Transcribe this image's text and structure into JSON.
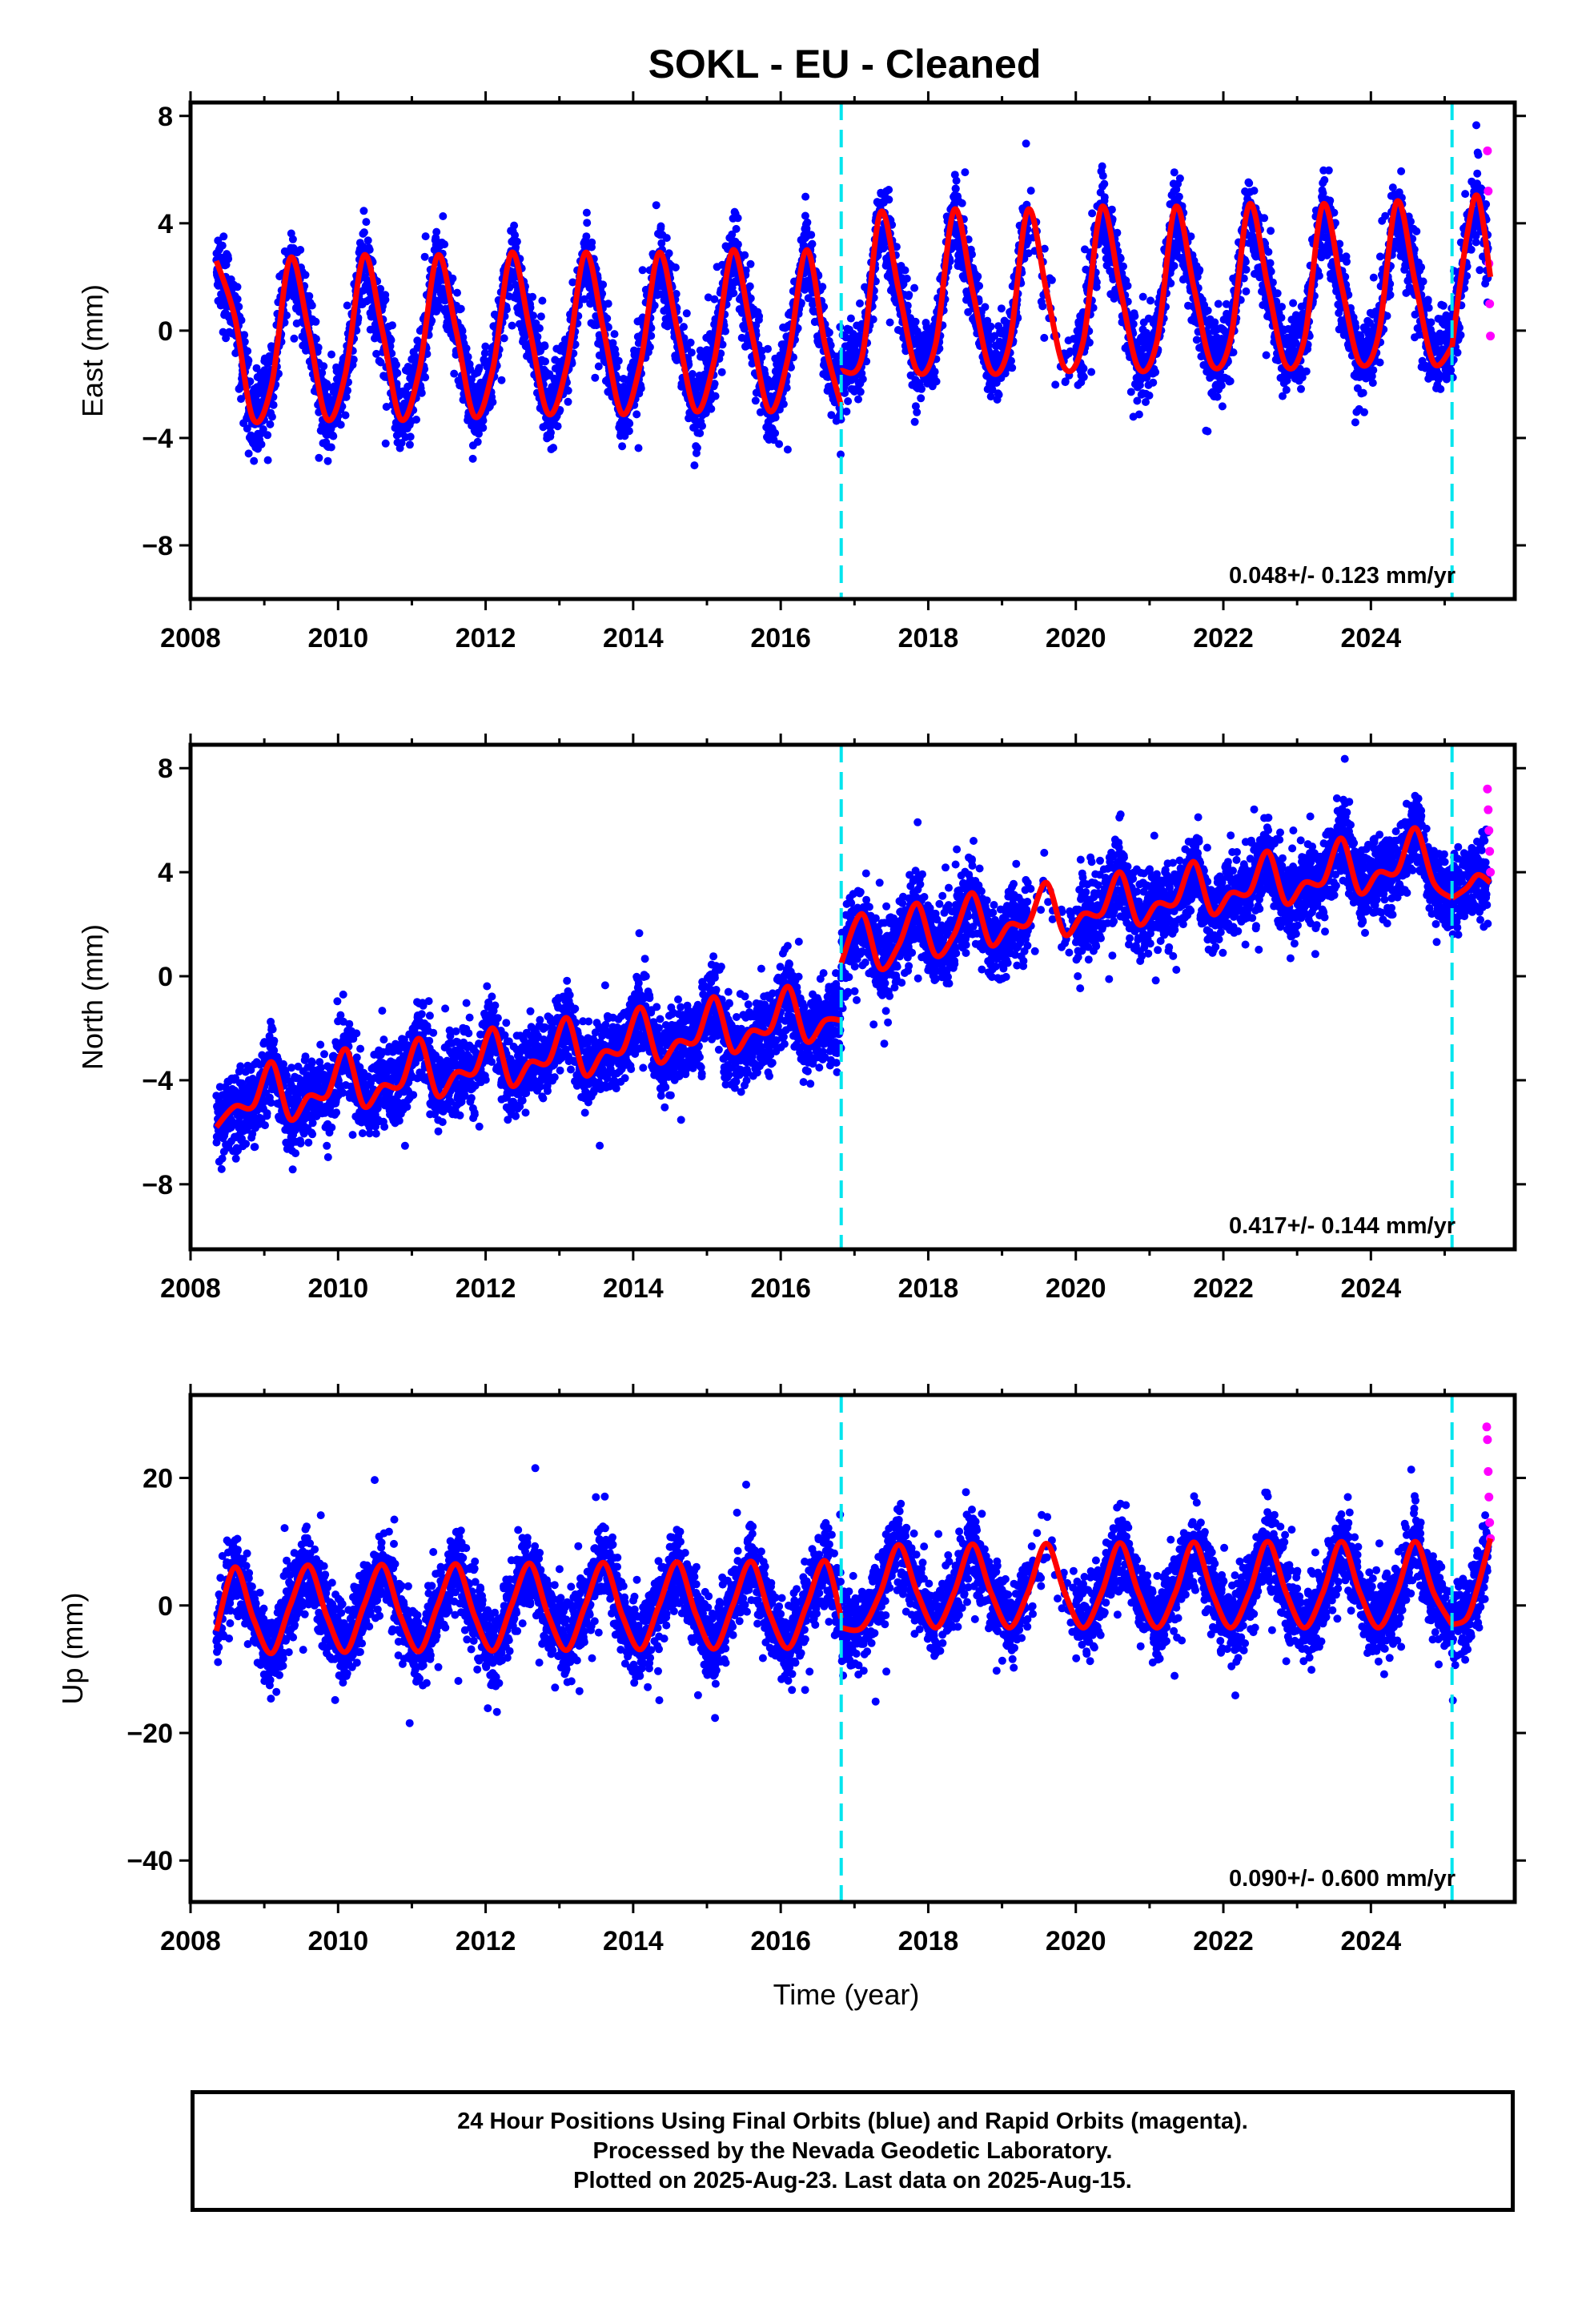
{
  "title": "SOKL  - EU - Cleaned",
  "x_axis_title": "Time (year)",
  "footer": [
    "24 Hour Positions Using Final Orbits (blue) and Rapid Orbits (magenta).",
    "Processed by the Nevada Geodetic Laboratory.",
    "Plotted on 2025-Aug-23. Last data on 2025-Aug-15."
  ],
  "colors": {
    "final": "#0000ff",
    "rapid": "#ff00ff",
    "model": "#ff0000",
    "event": "#00e5ee"
  },
  "chart_data": [
    {
      "type": "scatter",
      "ylabel": "East (mm)",
      "xlim": [
        2008.0,
        2025.95
      ],
      "ylim": [
        -10,
        8.5
      ],
      "xticks": [
        2008,
        2010,
        2012,
        2014,
        2016,
        2018,
        2020,
        2022,
        2024
      ],
      "yticks": [
        -8,
        -4,
        0,
        4,
        8
      ],
      "rate_label": "0.048+/- 0.123 mm/yr",
      "event_lines": [
        2016.82,
        2025.1
      ],
      "data_start": 2008.35,
      "data_end": 2025.62,
      "model_segments": [
        {
          "x": [
            2008.35,
            2008.6,
            2008.85,
            2009.1,
            2009.35,
            2009.6,
            2009.85,
            2010.1,
            2010.35,
            2010.6,
            2010.85,
            2011.1,
            2011.35,
            2011.6,
            2011.85,
            2012.1,
            2012.35,
            2012.6,
            2012.85,
            2013.1,
            2013.35,
            2013.6,
            2013.85,
            2014.1,
            2014.35,
            2014.6,
            2014.85,
            2015.1,
            2015.35,
            2015.6,
            2015.85,
            2016.1,
            2016.35,
            2016.6,
            2016.82
          ],
          "y": [
            2.6,
            0.5,
            -3.3,
            -2.0,
            2.7,
            0.0,
            -3.3,
            -1.6,
            2.8,
            0.0,
            -3.3,
            -1.5,
            2.8,
            0.0,
            -3.2,
            -1.4,
            2.9,
            0.0,
            -3.1,
            -1.3,
            2.9,
            0.0,
            -3.1,
            -1.2,
            2.9,
            0.0,
            -3.0,
            -1.1,
            3.0,
            0.0,
            -3.0,
            -1.0,
            3.0,
            -0.5,
            -2.8
          ]
        },
        {
          "x": [
            2016.82,
            2017.1,
            2017.35,
            2017.6,
            2017.85,
            2018.1,
            2018.35,
            2018.6,
            2018.85,
            2019.1,
            2019.35,
            2019.6,
            2019.85,
            2020.1,
            2020.35,
            2020.6,
            2020.85,
            2021.1,
            2021.35,
            2021.6,
            2021.85,
            2022.1,
            2022.35,
            2022.6,
            2022.85,
            2023.1,
            2023.35,
            2023.6,
            2023.85,
            2024.1,
            2024.35,
            2024.6,
            2024.85,
            2025.1
          ],
          "y": [
            -1.5,
            -1.0,
            4.4,
            1.5,
            -1.5,
            -0.5,
            4.5,
            1.5,
            -1.5,
            -0.5,
            4.5,
            1.5,
            -1.4,
            -0.4,
            4.6,
            1.6,
            -1.4,
            -0.4,
            4.6,
            1.6,
            -1.3,
            -0.3,
            4.7,
            1.7,
            -1.3,
            -0.3,
            4.7,
            1.7,
            -1.2,
            -0.2,
            4.8,
            1.8,
            -1.2,
            -0.6
          ]
        },
        {
          "x": [
            2025.1,
            2025.3,
            2025.45,
            2025.62
          ],
          "y": [
            -0.6,
            3.5,
            5.0,
            2.0
          ]
        }
      ],
      "rapid_points": {
        "x": [
          2025.58,
          2025.59,
          2025.6,
          2025.61,
          2025.62
        ],
        "y": [
          6.7,
          5.2,
          2.5,
          1.0,
          -0.2
        ]
      }
    },
    {
      "type": "scatter",
      "ylabel": "North (mm)",
      "xlim": [
        2008.0,
        2025.95
      ],
      "ylim": [
        -10.5,
        8.9
      ],
      "xticks": [
        2008,
        2010,
        2012,
        2014,
        2016,
        2018,
        2020,
        2022,
        2024
      ],
      "yticks": [
        -8,
        -4,
        0,
        4,
        8
      ],
      "rate_label": "0.417+/- 0.144 mm/yr",
      "event_lines": [
        2016.82,
        2025.1
      ],
      "data_start": 2008.35,
      "data_end": 2025.62,
      "model_segments": [
        {
          "x": [
            2008.35,
            2008.6,
            2008.85,
            2009.1,
            2009.35,
            2009.6,
            2009.85,
            2010.1,
            2010.35,
            2010.6,
            2010.85,
            2011.1,
            2011.35,
            2011.6,
            2011.85,
            2012.1,
            2012.35,
            2012.6,
            2012.85,
            2013.1,
            2013.35,
            2013.6,
            2013.85,
            2014.1,
            2014.35,
            2014.6,
            2014.85,
            2015.1,
            2015.35,
            2015.6,
            2015.85,
            2016.1,
            2016.35,
            2016.6,
            2016.82
          ],
          "y": [
            -5.8,
            -5.0,
            -5.0,
            -3.3,
            -5.5,
            -4.6,
            -4.6,
            -2.8,
            -5.0,
            -4.2,
            -4.2,
            -2.4,
            -4.6,
            -3.7,
            -3.7,
            -2.0,
            -4.2,
            -3.3,
            -3.3,
            -1.6,
            -3.8,
            -2.9,
            -2.9,
            -1.2,
            -3.3,
            -2.5,
            -2.5,
            -0.8,
            -2.9,
            -2.1,
            -2.1,
            -0.4,
            -2.5,
            -1.7,
            -1.7
          ]
        },
        {
          "x": [
            2016.82,
            2017.1,
            2017.35,
            2017.6,
            2017.85,
            2018.1,
            2018.35,
            2018.6,
            2018.85,
            2019.1,
            2019.35,
            2019.6,
            2019.85,
            2020.1,
            2020.35,
            2020.6,
            2020.85,
            2021.1,
            2021.35,
            2021.6,
            2021.85,
            2022.1,
            2022.35,
            2022.6,
            2022.85,
            2023.1,
            2023.35,
            2023.6,
            2023.85,
            2024.1,
            2024.35,
            2024.6,
            2024.85,
            2025.1
          ],
          "y": [
            0.5,
            2.4,
            0.3,
            1.2,
            2.8,
            0.8,
            1.6,
            3.2,
            1.2,
            2.0,
            2.0,
            3.6,
            1.6,
            2.4,
            2.4,
            4.0,
            2.0,
            2.8,
            2.8,
            4.4,
            2.4,
            3.2,
            3.2,
            4.8,
            2.8,
            3.6,
            3.6,
            5.3,
            3.2,
            4.0,
            4.0,
            5.7,
            3.6,
            3.0
          ]
        },
        {
          "x": [
            2025.1,
            2025.3,
            2025.45,
            2025.62
          ],
          "y": [
            3.0,
            3.4,
            3.9,
            3.6
          ]
        }
      ],
      "rapid_points": {
        "x": [
          2025.58,
          2025.59,
          2025.6,
          2025.61,
          2025.62
        ],
        "y": [
          7.2,
          6.4,
          5.6,
          4.8,
          4.0
        ]
      }
    },
    {
      "type": "scatter",
      "ylabel": "Up (mm)",
      "xlim": [
        2008.0,
        2025.95
      ],
      "ylim": [
        -46.5,
        33
      ],
      "xticks": [
        2008,
        2010,
        2012,
        2014,
        2016,
        2018,
        2020,
        2022,
        2024
      ],
      "yticks": [
        -40,
        -20,
        0,
        20
      ],
      "rate_label": "0.090+/- 0.600 mm/yr",
      "event_lines": [
        2016.82,
        2025.1
      ],
      "data_start": 2008.35,
      "data_end": 2025.62,
      "model_segments": [
        {
          "x": [
            2008.35,
            2008.6,
            2008.85,
            2009.1,
            2009.35,
            2009.6,
            2009.85,
            2010.1,
            2010.35,
            2010.6,
            2010.85,
            2011.1,
            2011.35,
            2011.6,
            2011.85,
            2012.1,
            2012.35,
            2012.6,
            2012.85,
            2013.1,
            2013.35,
            2013.6,
            2013.85,
            2014.1,
            2014.35,
            2014.6,
            2014.85,
            2015.1,
            2015.35,
            2015.6,
            2015.85,
            2016.1,
            2016.35,
            2016.6,
            2016.82
          ],
          "y": [
            -4.0,
            6.0,
            -2.0,
            -7.5,
            0.0,
            6.3,
            -1.8,
            -7.3,
            0.0,
            6.4,
            -1.8,
            -7.2,
            0.0,
            6.5,
            -1.7,
            -7.1,
            0.0,
            6.6,
            -1.6,
            -7.0,
            0.0,
            6.7,
            -1.5,
            -6.9,
            0.0,
            6.8,
            -1.4,
            -6.8,
            0.0,
            6.9,
            -1.3,
            -6.7,
            0.0,
            7.0,
            -2.0
          ]
        },
        {
          "x": [
            2016.82,
            2017.1,
            2017.35,
            2017.6,
            2017.85,
            2018.1,
            2018.35,
            2018.6,
            2018.85,
            2019.1,
            2019.35,
            2019.6,
            2019.85,
            2020.1,
            2020.35,
            2020.6,
            2020.85,
            2021.1,
            2021.35,
            2021.6,
            2021.85,
            2022.1,
            2022.35,
            2022.6,
            2022.85,
            2023.1,
            2023.35,
            2023.6,
            2023.85,
            2024.1,
            2024.35,
            2024.6,
            2024.85,
            2025.1
          ],
          "y": [
            -3.5,
            -3.5,
            2.0,
            9.5,
            2.0,
            -3.5,
            2.0,
            9.6,
            2.0,
            -3.5,
            2.0,
            9.7,
            2.0,
            -3.5,
            2.0,
            9.8,
            2.0,
            -3.5,
            2.0,
            9.9,
            2.0,
            -3.5,
            2.0,
            10.0,
            2.0,
            -3.5,
            2.0,
            10.0,
            2.0,
            -3.5,
            2.0,
            10.0,
            2.0,
            -3.0
          ]
        },
        {
          "x": [
            2025.1,
            2025.3,
            2025.45,
            2025.62
          ],
          "y": [
            -3.0,
            -2.0,
            3.0,
            10.5
          ]
        }
      ],
      "rapid_points": {
        "x": [
          2025.57,
          2025.58,
          2025.59,
          2025.6,
          2025.61,
          2025.62
        ],
        "y": [
          28,
          26,
          21,
          17,
          13,
          10.5
        ]
      }
    }
  ]
}
